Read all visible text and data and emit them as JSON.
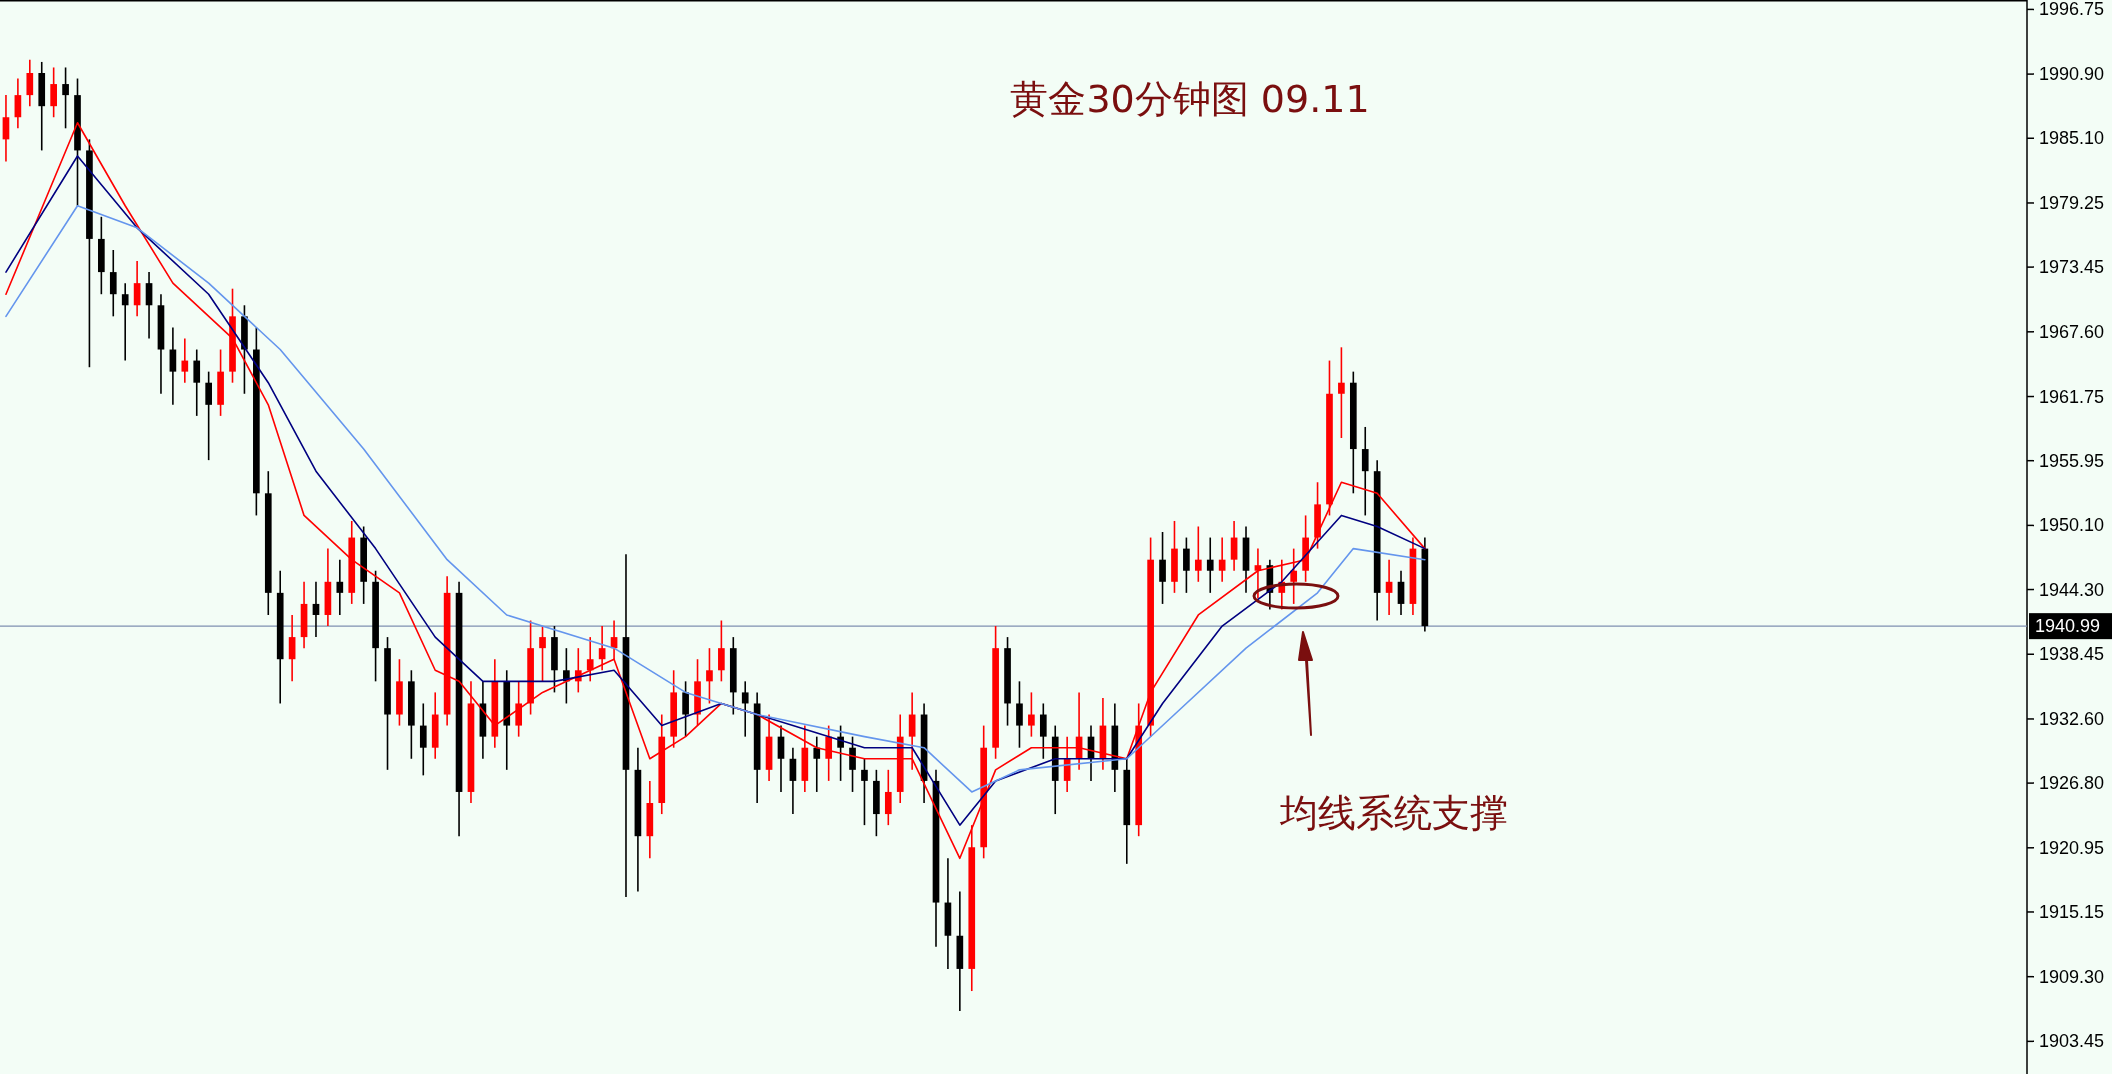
{
  "chart_data": {
    "type": "candlestick",
    "title": "黄金30分钟图  09.11",
    "annotations": [
      "均线系统支撑"
    ],
    "categories": [
      null,
      null,
      null,
      null,
      null,
      null,
      null,
      null,
      null,
      null,
      null,
      null,
      null,
      null,
      null,
      null,
      null,
      null,
      null,
      null,
      null,
      null,
      null,
      null,
      null,
      null,
      null,
      null,
      null,
      null,
      null,
      null,
      null,
      null,
      null,
      null,
      null,
      null,
      null,
      null,
      null,
      null,
      null,
      null,
      null,
      null,
      null,
      null,
      null,
      null,
      null,
      null,
      null,
      null,
      null,
      null,
      null,
      null,
      null,
      null,
      null,
      null,
      null,
      null,
      null,
      null,
      null,
      null,
      null,
      null,
      null,
      null,
      null,
      null,
      null,
      null,
      null,
      null,
      null,
      null,
      null,
      null,
      null,
      null,
      null,
      null,
      null,
      null,
      null,
      null,
      null,
      null,
      null,
      null,
      null,
      null,
      null,
      null,
      null,
      null,
      null,
      null,
      null,
      null,
      null,
      null,
      null,
      null,
      null,
      null,
      null,
      null,
      null,
      null,
      null,
      null,
      null,
      null,
      null,
      null,
      null,
      null,
      null,
      null,
      null,
      null,
      null,
      null,
      null,
      null,
      null,
      null,
      null,
      null,
      null,
      null,
      null,
      null,
      null,
      null,
      null,
      null,
      null,
      null,
      null,
      null,
      null,
      null,
      null,
      null,
      null,
      null,
      null,
      null,
      null,
      null,
      null,
      null,
      null,
      null,
      null,
      null,
      null,
      null,
      null,
      null,
      null,
      null,
      null,
      null
    ],
    "ohlc": [
      [
        1985,
        1989,
        1983,
        1987
      ],
      [
        1987,
        1990.5,
        1986,
        1989
      ],
      [
        1989,
        1992.2,
        1988,
        1991
      ],
      [
        1991,
        1992,
        1984,
        1988
      ],
      [
        1988,
        1991.5,
        1987,
        1990
      ],
      [
        1990,
        1991.5,
        1986,
        1989
      ],
      [
        1989,
        1990.5,
        1979,
        1984
      ],
      [
        1984,
        1985,
        1964.4,
        1976
      ],
      [
        1976,
        1978,
        1971,
        1973
      ],
      [
        1973,
        1975,
        1969,
        1971
      ],
      [
        1971,
        1972,
        1965,
        1970
      ],
      [
        1970,
        1974,
        1969,
        1972
      ],
      [
        1972,
        1973,
        1967,
        1970
      ],
      [
        1970,
        1971,
        1962,
        1966
      ],
      [
        1966,
        1968,
        1961,
        1964
      ],
      [
        1964,
        1967,
        1963,
        1965
      ],
      [
        1965,
        1966,
        1960,
        1963
      ],
      [
        1963,
        1964,
        1956,
        1961
      ],
      [
        1961,
        1966,
        1960,
        1964
      ],
      [
        1964,
        1971.5,
        1963,
        1969
      ],
      [
        1969,
        1970,
        1962,
        1966
      ],
      [
        1966,
        1968,
        1951,
        1953
      ],
      [
        1953,
        1955,
        1942,
        1944
      ],
      [
        1944,
        1946,
        1934,
        1938
      ],
      [
        1938,
        1942,
        1936,
        1940
      ],
      [
        1940,
        1945,
        1939,
        1943
      ],
      [
        1943,
        1945,
        1940,
        1942
      ],
      [
        1942,
        1948,
        1941,
        1945
      ],
      [
        1945,
        1947,
        1942,
        1944
      ],
      [
        1944,
        1950.5,
        1943,
        1949
      ],
      [
        1949,
        1950,
        1943,
        1945
      ],
      [
        1945,
        1946,
        1936,
        1939
      ],
      [
        1939,
        1940,
        1928,
        1933
      ],
      [
        1933,
        1938,
        1932,
        1936
      ],
      [
        1936,
        1937,
        1929,
        1932
      ],
      [
        1932,
        1934,
        1927.5,
        1930
      ],
      [
        1930,
        1935,
        1929,
        1933
      ],
      [
        1933,
        1945.5,
        1932,
        1944
      ],
      [
        1944,
        1945,
        1922,
        1926
      ],
      [
        1926,
        1936,
        1925,
        1934
      ],
      [
        1934,
        1936,
        1929,
        1931
      ],
      [
        1931,
        1938,
        1930,
        1936
      ],
      [
        1936,
        1937,
        1928,
        1932
      ],
      [
        1932,
        1936,
        1931,
        1934
      ],
      [
        1934,
        1941.5,
        1933,
        1939
      ],
      [
        1939,
        1941,
        1936,
        1940
      ],
      [
        1940,
        1941,
        1935,
        1937
      ],
      [
        1937,
        1939,
        1934,
        1936
      ],
      [
        1936,
        1939,
        1935,
        1937
      ],
      [
        1937,
        1940,
        1936,
        1938
      ],
      [
        1938,
        1941,
        1937,
        1939
      ],
      [
        1939,
        1941.5,
        1938,
        1940
      ],
      [
        1940,
        1947.5,
        1916.5,
        1928
      ],
      [
        1928,
        1930,
        1917,
        1922
      ],
      [
        1922,
        1927,
        1920,
        1925
      ],
      [
        1925,
        1933,
        1924,
        1931
      ],
      [
        1931,
        1937,
        1930,
        1935
      ],
      [
        1935,
        1936,
        1931,
        1933
      ],
      [
        1933,
        1938,
        1932,
        1936
      ],
      [
        1936,
        1939,
        1934,
        1937
      ],
      [
        1937,
        1941.5,
        1936,
        1939
      ],
      [
        1939,
        1940,
        1933,
        1935
      ],
      [
        1935,
        1936,
        1931,
        1934
      ],
      [
        1934,
        1935,
        1925,
        1928
      ],
      [
        1928,
        1933,
        1927,
        1931
      ],
      [
        1931,
        1932,
        1926,
        1929
      ],
      [
        1929,
        1930,
        1924,
        1927
      ],
      [
        1927,
        1932,
        1926,
        1930
      ],
      [
        1930,
        1931,
        1926,
        1929
      ],
      [
        1929,
        1932,
        1927,
        1931
      ],
      [
        1931,
        1932,
        1927,
        1930
      ],
      [
        1930,
        1931,
        1926,
        1928
      ],
      [
        1928,
        1929,
        1923,
        1927
      ],
      [
        1927,
        1928,
        1922,
        1924
      ],
      [
        1924,
        1928,
        1923,
        1926
      ],
      [
        1926,
        1933,
        1925,
        1931
      ],
      [
        1931,
        1935,
        1928,
        1933
      ],
      [
        1933,
        1934,
        1925,
        1927
      ],
      [
        1927,
        1928,
        1912,
        1916
      ],
      [
        1916,
        1920,
        1910,
        1913
      ],
      [
        1913,
        1917,
        1906.2,
        1910
      ],
      [
        1910,
        1923,
        1908,
        1921
      ],
      [
        1921,
        1932,
        1920,
        1930
      ],
      [
        1930,
        1941,
        1929,
        1939
      ],
      [
        1939,
        1940,
        1932,
        1934
      ],
      [
        1934,
        1936,
        1930,
        1932
      ],
      [
        1932,
        1935,
        1931,
        1933
      ],
      [
        1933,
        1934,
        1929,
        1931
      ],
      [
        1931,
        1932,
        1924,
        1927
      ],
      [
        1927,
        1931,
        1926,
        1929
      ],
      [
        1929,
        1935,
        1928,
        1931
      ],
      [
        1931,
        1932,
        1927,
        1929
      ],
      [
        1929,
        1934.5,
        1928,
        1932
      ],
      [
        1932,
        1934,
        1926,
        1928
      ],
      [
        1928,
        1929,
        1919.5,
        1923
      ],
      [
        1923,
        1934,
        1922,
        1932
      ],
      [
        1932,
        1949,
        1931,
        1947
      ],
      [
        1947,
        1949.5,
        1943,
        1945
      ],
      [
        1945,
        1950.5,
        1944,
        1948
      ],
      [
        1948,
        1949,
        1944,
        1946
      ],
      [
        1946,
        1950,
        1945,
        1947
      ],
      [
        1947,
        1949,
        1944,
        1946
      ],
      [
        1946,
        1949,
        1945,
        1947
      ],
      [
        1947,
        1950.5,
        1946,
        1949
      ],
      [
        1949,
        1950,
        1944,
        1946
      ],
      [
        1946,
        1948,
        1943.5,
        1946.5
      ],
      [
        1946.5,
        1947,
        1942.5,
        1944
      ],
      [
        1944,
        1947,
        1942.5,
        1945
      ],
      [
        1945,
        1948,
        1943,
        1946
      ],
      [
        1946,
        1951,
        1945,
        1949
      ],
      [
        1949,
        1954,
        1948,
        1952
      ],
      [
        1952,
        1965,
        1951,
        1962
      ],
      [
        1962,
        1966.2,
        1958,
        1963
      ],
      [
        1963,
        1964,
        1953,
        1957
      ],
      [
        1957,
        1959,
        1951,
        1955
      ],
      [
        1955,
        1956,
        1941.5,
        1944
      ],
      [
        1944,
        1947,
        1942,
        1945
      ],
      [
        1945,
        1946,
        1942,
        1943
      ],
      [
        1943,
        1949,
        1942,
        1948
      ],
      [
        1948,
        1949,
        1940.5,
        1940.99
      ],
      null,
      null,
      null,
      null,
      null,
      null,
      null,
      null,
      null,
      null,
      null,
      null,
      null,
      null,
      null,
      null,
      null,
      null,
      null,
      null,
      null,
      null,
      null,
      null,
      null,
      null,
      null,
      null,
      null,
      null,
      null,
      null,
      null,
      null,
      null,
      null,
      null,
      null,
      null,
      null,
      null,
      null,
      null,
      null,
      null,
      null,
      null,
      null,
      null,
      null
    ],
    "series": [
      {
        "type": "line",
        "color": "#ff0000",
        "values": [
          1971,
          null,
          null,
          null,
          null,
          null,
          1986.5,
          null,
          null,
          null,
          1979,
          null,
          null,
          null,
          1972,
          null,
          null,
          null,
          null,
          1967,
          null,
          null,
          1961,
          null,
          null,
          1951,
          null,
          null,
          null,
          1947,
          null,
          null,
          null,
          1944,
          null,
          null,
          1937,
          null,
          1936,
          null,
          null,
          1932,
          null,
          null,
          null,
          1935,
          null,
          null,
          null,
          null,
          null,
          1938,
          null,
          null,
          1929,
          null,
          null,
          1931,
          null,
          null,
          1934,
          null,
          null,
          1933,
          null,
          null,
          null,
          null,
          1930,
          null,
          null,
          null,
          1929,
          null,
          null,
          null,
          1929,
          null,
          null,
          null,
          1920,
          null,
          null,
          1928,
          null,
          null,
          1930,
          null,
          null,
          null,
          1930,
          null,
          null,
          null,
          1929,
          null,
          1935,
          null,
          null,
          null,
          1942,
          null,
          null,
          null,
          null,
          1946,
          null,
          null,
          null,
          1947,
          null,
          null,
          1954,
          null,
          null,
          1953,
          null,
          null,
          null,
          1948,
          null,
          null,
          null,
          null,
          null,
          null,
          null,
          null,
          null,
          null,
          null,
          null,
          null,
          null,
          null,
          null,
          null,
          null,
          null,
          null,
          null,
          null,
          null,
          null,
          null,
          null,
          null,
          null,
          null,
          null,
          null,
          null,
          null,
          null,
          null,
          null,
          null,
          null,
          null,
          null,
          null,
          null,
          null,
          null,
          null,
          null,
          null,
          null,
          null,
          null
        ]
      },
      {
        "type": "line",
        "color": "#000080",
        "values": [
          1973,
          null,
          null,
          null,
          null,
          null,
          1983.5,
          null,
          null,
          null,
          null,
          1977,
          null,
          null,
          null,
          null,
          null,
          1971,
          null,
          null,
          null,
          null,
          1963,
          null,
          null,
          null,
          1955,
          null,
          null,
          null,
          null,
          1948,
          null,
          null,
          null,
          null,
          1940,
          null,
          null,
          null,
          1936,
          null,
          null,
          null,
          null,
          null,
          1936,
          null,
          null,
          null,
          null,
          1937,
          null,
          null,
          null,
          1932,
          null,
          null,
          null,
          null,
          1934,
          null,
          null,
          null,
          null,
          null,
          1932,
          null,
          null,
          null,
          null,
          null,
          1930,
          null,
          null,
          null,
          1930,
          null,
          null,
          null,
          1923,
          null,
          null,
          1927,
          null,
          null,
          null,
          null,
          1929,
          null,
          null,
          null,
          null,
          null,
          1929,
          null,
          null,
          1934,
          null,
          null,
          null,
          null,
          1941,
          null,
          null,
          null,
          null,
          1945,
          null,
          null,
          null,
          null,
          1951,
          null,
          null,
          1950,
          null,
          null,
          null,
          1948,
          null,
          null,
          null,
          null,
          null,
          null,
          null,
          null,
          null,
          null,
          null,
          null,
          null,
          null,
          null,
          null,
          null,
          null,
          null,
          null,
          null,
          null,
          null,
          null,
          null,
          null,
          null,
          null,
          null,
          null,
          null,
          null,
          null,
          null,
          null,
          null,
          null,
          null,
          null,
          null,
          null,
          null,
          null,
          null,
          null,
          null,
          null,
          null,
          null,
          null
        ]
      },
      {
        "type": "line",
        "color": "#6495ed",
        "values": [
          1969,
          null,
          null,
          null,
          null,
          null,
          1979,
          null,
          null,
          null,
          null,
          1977,
          null,
          null,
          null,
          null,
          null,
          1972,
          null,
          null,
          null,
          null,
          null,
          1966,
          null,
          null,
          null,
          null,
          null,
          null,
          1957,
          null,
          null,
          null,
          null,
          null,
          null,
          1947,
          null,
          null,
          null,
          null,
          1942,
          null,
          null,
          null,
          null,
          null,
          null,
          null,
          null,
          1939,
          null,
          null,
          null,
          null,
          null,
          1935,
          null,
          null,
          null,
          null,
          null,
          1933,
          null,
          null,
          null,
          null,
          null,
          null,
          null,
          null,
          1931,
          null,
          null,
          null,
          null,
          1930,
          null,
          null,
          null,
          1926,
          null,
          null,
          null,
          1928,
          null,
          null,
          null,
          null,
          null,
          null,
          null,
          null,
          1929,
          null,
          null,
          null,
          1933,
          null,
          null,
          null,
          null,
          null,
          1939,
          null,
          null,
          null,
          null,
          null,
          1944,
          null,
          null,
          1948,
          null,
          null,
          null,
          null,
          null,
          1947,
          null,
          null,
          null,
          null,
          null,
          null,
          null,
          null,
          null,
          null,
          null,
          null,
          null,
          null,
          null,
          null,
          null,
          null,
          null,
          null,
          null,
          null,
          null,
          null,
          null,
          null,
          null,
          null,
          null,
          null,
          null,
          null,
          null,
          null,
          null,
          null,
          null,
          null,
          null,
          null,
          null,
          null,
          null,
          null,
          null,
          null,
          null,
          null,
          null,
          null
        ]
      }
    ],
    "ylim": [
      1900.5,
      1997.6
    ],
    "yticks": [
      {
        "value": 1903.45,
        "label": "1903.45"
      },
      {
        "value": 1909.3,
        "label": "1909.30"
      },
      {
        "value": 1915.15,
        "label": "1915.15"
      },
      {
        "value": 1920.95,
        "label": "1920.95"
      },
      {
        "value": 1926.8,
        "label": "1926.80"
      },
      {
        "value": 1932.6,
        "label": "1932.60"
      },
      {
        "value": 1938.45,
        "label": "1938.45"
      },
      {
        "value": 1944.3,
        "label": "1944.30"
      },
      {
        "value": 1950.1,
        "label": "1950.10"
      },
      {
        "value": 1955.95,
        "label": "1955.95"
      },
      {
        "value": 1961.75,
        "label": "1961.75"
      },
      {
        "value": 1967.6,
        "label": "1967.60"
      },
      {
        "value": 1973.45,
        "label": "1973.45"
      },
      {
        "value": 1979.25,
        "label": "1979.25"
      },
      {
        "value": 1985.1,
        "label": "1985.10"
      },
      {
        "value": 1990.9,
        "label": "1990.90"
      },
      {
        "value": 1996.75,
        "label": "1996.75"
      }
    ],
    "ref_lines": [
      {
        "axis": "y",
        "value": 1940.99,
        "label": "1940.99",
        "color": "#7f8fb0"
      }
    ],
    "tick_labels": "y"
  }
}
